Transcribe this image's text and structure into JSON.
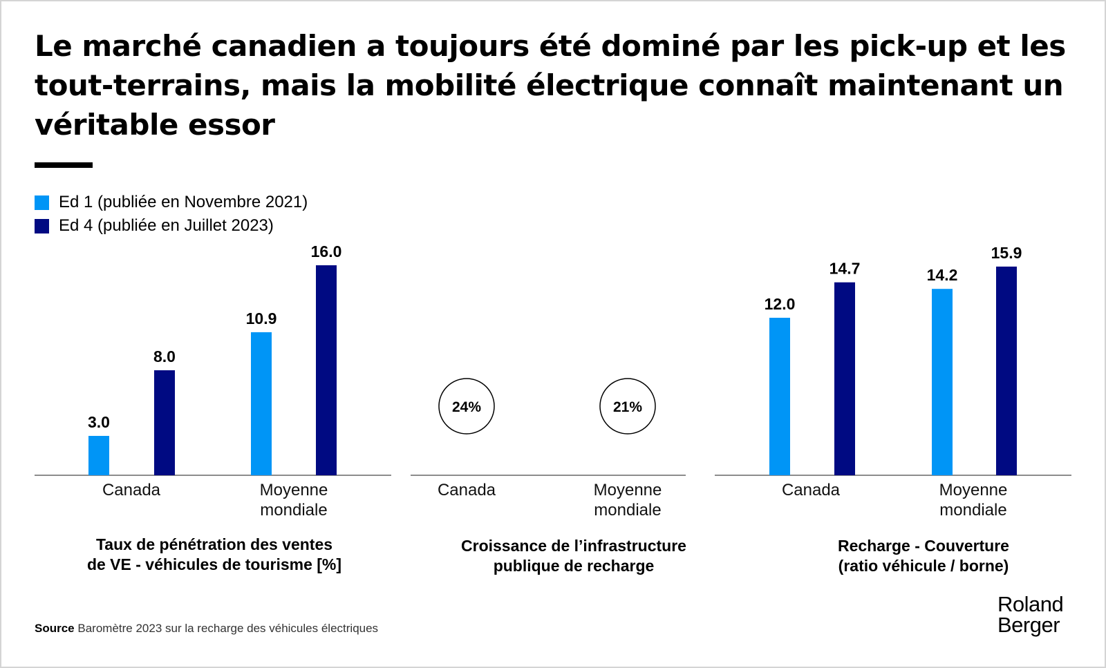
{
  "title": "Le marché canadien a toujours été dominé par les pick-up et les tout-terrains, mais la mobilité électrique connaît maintenant un véritable essor",
  "colors": {
    "ed1": "#0095F6",
    "ed4": "#000A82",
    "axis": "#666666"
  },
  "legend": [
    {
      "label": "Ed 1 (publiée en Novembre 2021)",
      "color": "#0095F6"
    },
    {
      "label": "Ed 4 (publiée en Juillet 2023)",
      "color": "#000A82"
    }
  ],
  "chart_data": [
    {
      "type": "bar",
      "title": "Taux de pénétration des ventes de VE - véhicules de tourisme [%]",
      "categories": [
        "Canada",
        "Moyenne mondiale"
      ],
      "series": [
        {
          "name": "Ed 1 (publiée en Novembre 2021)",
          "values": [
            3.0,
            10.9
          ]
        },
        {
          "name": "Ed 4 (publiée en Juillet 2023)",
          "values": [
            8.0,
            16.0
          ]
        }
      ]
    },
    {
      "type": "table",
      "title": "Croissance de l’infrastructure publique de recharge",
      "categories": [
        "Canada",
        "Moyenne mondiale"
      ],
      "values": [
        "24%",
        "21%"
      ]
    },
    {
      "type": "bar",
      "title": "Recharge - Couverture (ratio véhicule / borne)",
      "categories": [
        "Canada",
        "Moyenne mondiale"
      ],
      "series": [
        {
          "name": "Ed 1 (publiée en Novembre 2021)",
          "values": [
            12.0,
            14.2
          ]
        },
        {
          "name": "Ed 4 (publiée en Juillet 2023)",
          "values": [
            14.7,
            15.9
          ]
        }
      ]
    }
  ],
  "captions": {
    "c1": [
      "Taux de pénétration des ventes",
      "de VE - véhicules de tourisme [%]"
    ],
    "c2": [
      "Croissance de l’infrastructure",
      "publique de recharge"
    ],
    "c3": [
      "Recharge - Couverture",
      "(ratio véhicule / borne)"
    ]
  },
  "source": {
    "label": "Source",
    "text": "Baromètre 2023 sur la recharge des véhicules électriques"
  },
  "logo": {
    "line1": "Roland",
    "line2": "Berger"
  }
}
